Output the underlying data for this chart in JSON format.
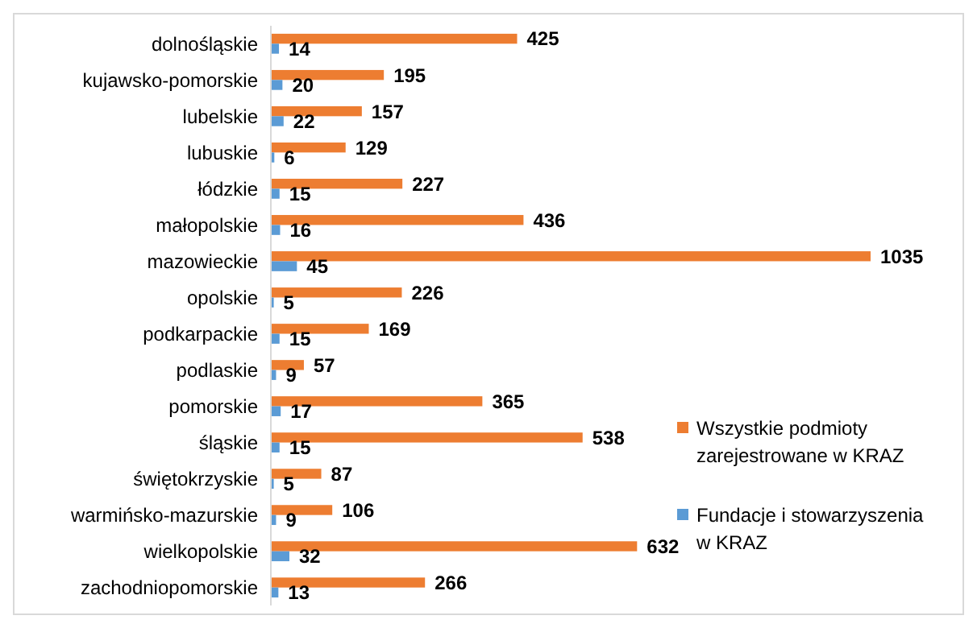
{
  "chart_data": {
    "type": "bar",
    "orientation": "horizontal",
    "categories": [
      "dolnośląskie",
      "kujawsko-pomorskie",
      "lubelskie",
      "lubuskie",
      "łódzkie",
      "małopolskie",
      "mazowieckie",
      "opolskie",
      "podkarpackie",
      "podlaskie",
      "pomorskie",
      "śląskie",
      "świętokrzyskie",
      "warmińsko-mazurskie",
      "wielkopolskie",
      "zachodniopomorskie"
    ],
    "series": [
      {
        "name": "Wszystkie podmioty zarejestrowane w KRAZ",
        "color": "#ed7d31",
        "values": [
          425,
          195,
          157,
          129,
          227,
          436,
          1035,
          226,
          169,
          57,
          365,
          538,
          87,
          106,
          632,
          266
        ]
      },
      {
        "name": "Fundacje i stowarzyszenia w KRAZ",
        "color": "#5b9bd5",
        "values": [
          14,
          20,
          22,
          6,
          15,
          16,
          45,
          5,
          15,
          9,
          17,
          15,
          5,
          9,
          32,
          13
        ]
      }
    ],
    "data_labels": true,
    "legend": "right"
  }
}
